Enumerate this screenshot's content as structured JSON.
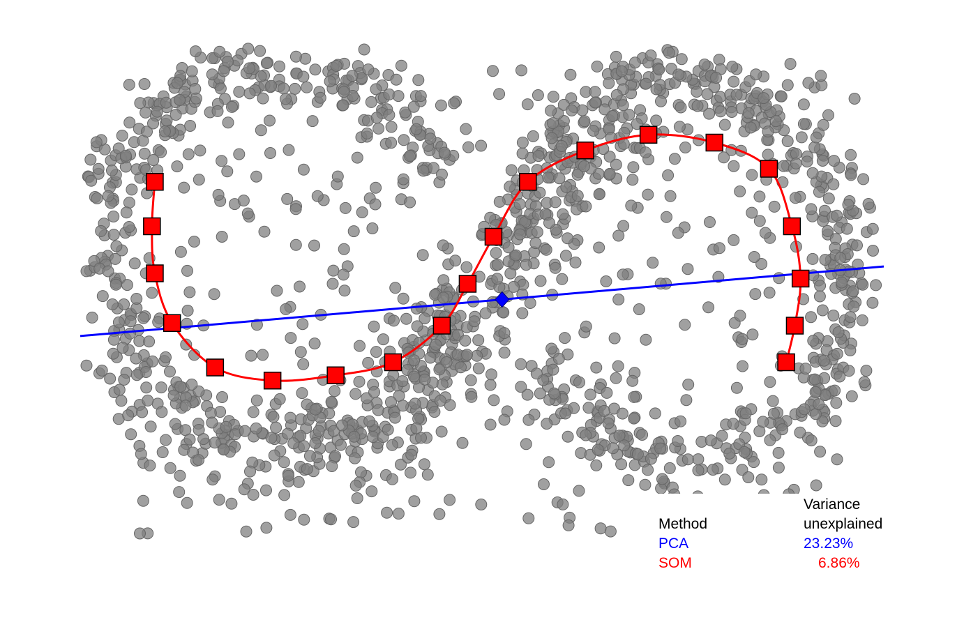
{
  "chart_data": {
    "type": "scatter",
    "title": "",
    "xlabel": "",
    "ylabel": "",
    "xlim": [
      -1.4,
      1.4
    ],
    "ylim": [
      -1.0,
      1.0
    ],
    "grid": false,
    "colors": {
      "points": "#808080",
      "points_edge": "#666666",
      "pca": "#0000ff",
      "som": "#ff0000"
    },
    "pca_line": {
      "center": [
        0.07,
        0.02
      ],
      "slope": 0.095
    },
    "som_nodes": [
      [
        -1.14,
        0.47
      ],
      [
        -1.15,
        0.3
      ],
      [
        -1.14,
        0.12
      ],
      [
        -1.08,
        -0.07
      ],
      [
        -0.93,
        -0.24
      ],
      [
        -0.73,
        -0.29
      ],
      [
        -0.51,
        -0.27
      ],
      [
        -0.31,
        -0.22
      ],
      [
        -0.14,
        -0.08
      ],
      [
        -0.05,
        0.08
      ],
      [
        0.04,
        0.26
      ],
      [
        0.16,
        0.47
      ],
      [
        0.36,
        0.59
      ],
      [
        0.58,
        0.65
      ],
      [
        0.81,
        0.62
      ],
      [
        1.0,
        0.52
      ],
      [
        1.08,
        0.3
      ],
      [
        1.11,
        0.1
      ],
      [
        1.09,
        -0.08
      ],
      [
        1.06,
        -0.22
      ]
    ],
    "legend": {
      "position": "bottom-right",
      "header_method": "Method",
      "header_variance_line1": "Variance",
      "header_variance_line2": "unexplained",
      "rows": [
        {
          "name": "PCA",
          "value": "23.23%",
          "color": "#0000ff"
        },
        {
          "name": "SOM",
          "value": "6.86%",
          "color": "#ff0000"
        }
      ]
    }
  }
}
